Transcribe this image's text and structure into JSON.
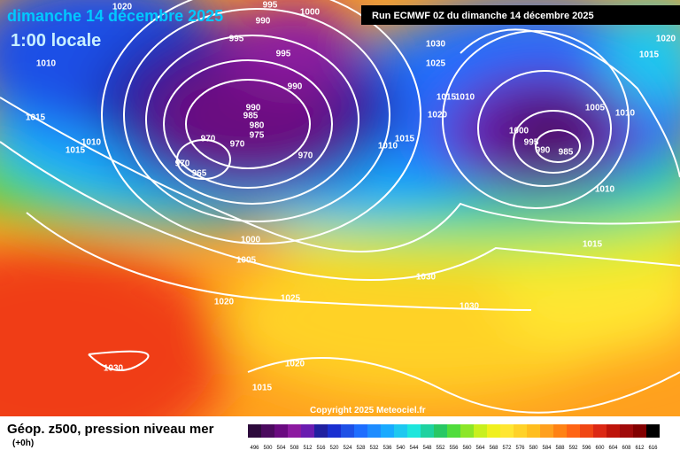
{
  "header": {
    "date": "dimanche 14 décembre 2025",
    "time": "1:00 locale",
    "run": "Run ECMWF 0Z du dimanche 14 décembre 2025"
  },
  "footer": {
    "title": "Géop. z500, pression niveau mer",
    "step": "(+0h)",
    "copyright": "Copyright 2025 Meteociel.fr"
  },
  "isobar_labels": [
    "1020",
    "995",
    "1000",
    "990",
    "995",
    "995",
    "1010",
    "990",
    "1030",
    "1025",
    "1020",
    "1015",
    "1015",
    "990",
    "985",
    "980",
    "975",
    "970",
    "970",
    "1010",
    "1015",
    "970",
    "970",
    "965",
    "1015",
    "1010",
    "1020",
    "1010",
    "1015",
    "1005",
    "1010",
    "1000",
    "995",
    "990",
    "985",
    "1010",
    "1000",
    "1005",
    "1015",
    "1020",
    "1025",
    "1030",
    "1030",
    "1030",
    "1020",
    "1015"
  ],
  "color_scale": {
    "values": [
      496,
      500,
      504,
      508,
      512,
      516,
      520,
      524,
      528,
      532,
      536,
      540,
      544,
      548,
      552,
      556,
      560,
      564,
      568,
      572,
      576,
      580,
      584,
      588,
      592,
      596,
      600,
      604,
      608,
      612,
      616
    ],
    "colors": [
      "#2d0a3c",
      "#4b0a5e",
      "#6a0a80",
      "#8c1aa0",
      "#6a1cb0",
      "#2020a0",
      "#1a2fd0",
      "#1e50e6",
      "#1e6eff",
      "#1e8cff",
      "#19aaff",
      "#1ec8f0",
      "#1ee6dc",
      "#1ed2a0",
      "#28c864",
      "#50dc3c",
      "#8ce628",
      "#c8f01e",
      "#f0f01e",
      "#ffe632",
      "#ffd228",
      "#ffbe1e",
      "#ffa01e",
      "#ff8214",
      "#ff6414",
      "#f04614",
      "#dc2814",
      "#be140a",
      "#a00a0a",
      "#820000",
      "#000000"
    ]
  }
}
